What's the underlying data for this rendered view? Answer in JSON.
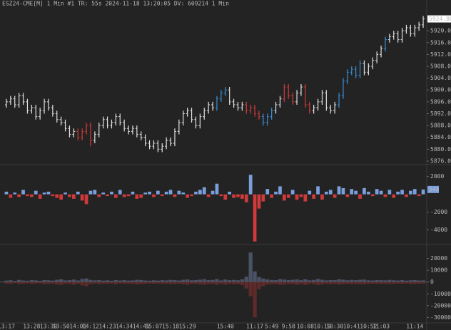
{
  "chart_data": [
    {
      "type": "ohlc",
      "title": "ESZ24-CME[M]  1 Min  #1 TR: 55s 2024-11-18 13:20:05 DV: 609214 1 Min",
      "categories": [
        "13:17",
        null,
        null,
        null,
        null,
        null,
        "13:28",
        null,
        null,
        null,
        "13:39",
        null,
        null,
        "13:50",
        null,
        null,
        null,
        "14:01",
        null,
        null,
        "14:12",
        null,
        null,
        null,
        "14:23",
        null,
        null,
        null,
        "14:34",
        null,
        null,
        null,
        "14:45",
        null,
        null,
        "15:07",
        null,
        null,
        null,
        "15:18",
        null,
        null,
        null,
        "15:29",
        null,
        null,
        null,
        null,
        null,
        null,
        null,
        null,
        "15:40",
        null,
        null,
        null,
        null,
        null,
        null,
        "11:17",
        null,
        null,
        null,
        "5:49",
        null,
        null,
        null,
        "9:58",
        null,
        null,
        null,
        "10:08",
        null,
        null,
        null,
        "10:19",
        null,
        null,
        "10:30",
        null,
        null,
        null,
        "10:41",
        null,
        null,
        null,
        "10:52",
        null,
        null,
        "11:03",
        null,
        null,
        null,
        null,
        null,
        null,
        null,
        "11:14",
        null,
        null
      ],
      "ohlc": [
        [
          5895,
          5897,
          5894,
          5896
        ],
        [
          5896,
          5898,
          5895,
          5897
        ],
        [
          5897,
          5898,
          5894,
          5895
        ],
        [
          5895,
          5899,
          5894,
          5898
        ],
        [
          5898,
          5899,
          5895,
          5896
        ],
        [
          5896,
          5897,
          5892,
          5893
        ],
        [
          5893,
          5895,
          5892,
          5894
        ],
        [
          5894,
          5895,
          5890,
          5891
        ],
        [
          5891,
          5894,
          5890,
          5893
        ],
        [
          5893,
          5897,
          5892,
          5896
        ],
        [
          5896,
          5897,
          5893,
          5894
        ],
        [
          5894,
          5895,
          5891,
          5892
        ],
        [
          5892,
          5893,
          5889,
          5890
        ],
        [
          5890,
          5891,
          5888,
          5889
        ],
        [
          5889,
          5890,
          5886,
          5887
        ],
        [
          5887,
          5888,
          5884,
          5885
        ],
        [
          5885,
          5887,
          5884,
          5886
        ],
        [
          5886,
          5887,
          5883,
          5884
        ],
        [
          5884,
          5887,
          5883,
          5886
        ],
        [
          5886,
          5889,
          5885,
          5888
        ],
        [
          5888,
          5889,
          5881,
          5883
        ],
        [
          5883,
          5886,
          5882,
          5885
        ],
        [
          5885,
          5889,
          5884,
          5888
        ],
        [
          5888,
          5891,
          5887,
          5890
        ],
        [
          5890,
          5891,
          5887,
          5888
        ],
        [
          5888,
          5890,
          5887,
          5889
        ],
        [
          5889,
          5892,
          5888,
          5891
        ],
        [
          5891,
          5892,
          5888,
          5889
        ],
        [
          5889,
          5890,
          5886,
          5887
        ],
        [
          5887,
          5888,
          5885,
          5886
        ],
        [
          5886,
          5888,
          5885,
          5887
        ],
        [
          5887,
          5888,
          5884,
          5885
        ],
        [
          5885,
          5886,
          5883,
          5884
        ],
        [
          5884,
          5885,
          5881,
          5882
        ],
        [
          5882,
          5883,
          5880,
          5881
        ],
        [
          5881,
          5883,
          5880,
          5882
        ],
        [
          5882,
          5883,
          5879,
          5880
        ],
        [
          5880,
          5882,
          5879,
          5881
        ],
        [
          5881,
          5884,
          5880,
          5883
        ],
        [
          5883,
          5884,
          5881,
          5882
        ],
        [
          5882,
          5887,
          5881,
          5886
        ],
        [
          5886,
          5890,
          5885,
          5889
        ],
        [
          5889,
          5893,
          5888,
          5892
        ],
        [
          5892,
          5894,
          5891,
          5893
        ],
        [
          5893,
          5894,
          5889,
          5890
        ],
        [
          5890,
          5891,
          5887,
          5888
        ],
        [
          5888,
          5892,
          5887,
          5891
        ],
        [
          5891,
          5894,
          5890,
          5893
        ],
        [
          5893,
          5896,
          5892,
          5895
        ],
        [
          5895,
          5896,
          5893,
          5894
        ],
        [
          5894,
          5898,
          5893,
          5897
        ],
        [
          5897,
          5900,
          5896,
          5899
        ],
        [
          5899,
          5901,
          5898,
          5900
        ],
        [
          5900,
          5901,
          5895,
          5896
        ],
        [
          5896,
          5897,
          5894,
          5895
        ],
        [
          5895,
          5896,
          5893,
          5894
        ],
        [
          5894,
          5896,
          5893,
          5895
        ],
        [
          5895,
          5896,
          5892,
          5893
        ],
        [
          5893,
          5895,
          5892,
          5894
        ],
        [
          5894,
          5895,
          5891,
          5892
        ],
        [
          5892,
          5893,
          5890,
          5891
        ],
        [
          5891,
          5892,
          5888,
          5889
        ],
        [
          5889,
          5892,
          5888,
          5891
        ],
        [
          5891,
          5894,
          5890,
          5893
        ],
        [
          5893,
          5896,
          5892,
          5895
        ],
        [
          5895,
          5898,
          5894,
          5897
        ],
        [
          5897,
          5902,
          5896,
          5901
        ],
        [
          5901,
          5902,
          5897,
          5898
        ],
        [
          5898,
          5899,
          5895,
          5896
        ],
        [
          5896,
          5900,
          5895,
          5899
        ],
        [
          5899,
          5902,
          5898,
          5901
        ],
        [
          5901,
          5902,
          5894,
          5895
        ],
        [
          5895,
          5896,
          5892,
          5893
        ],
        [
          5893,
          5895,
          5892,
          5894
        ],
        [
          5894,
          5897,
          5893,
          5896
        ],
        [
          5896,
          5900,
          5895,
          5899
        ],
        [
          5899,
          5900,
          5893,
          5894
        ],
        [
          5894,
          5895,
          5892,
          5893
        ],
        [
          5893,
          5896,
          5892,
          5895
        ],
        [
          5895,
          5899,
          5894,
          5898
        ],
        [
          5898,
          5904,
          5897,
          5903
        ],
        [
          5903,
          5907,
          5902,
          5906
        ],
        [
          5906,
          5908,
          5905,
          5907
        ],
        [
          5907,
          5908,
          5904,
          5905
        ],
        [
          5905,
          5910,
          5904,
          5909
        ],
        [
          5909,
          5910,
          5905,
          5906
        ],
        [
          5906,
          5909,
          5905,
          5908
        ],
        [
          5908,
          5911,
          5907,
          5910
        ],
        [
          5910,
          5913,
          5909,
          5912
        ],
        [
          5912,
          5915,
          5911,
          5914
        ],
        [
          5914,
          5918,
          5913,
          5917
        ],
        [
          5917,
          5919,
          5916,
          5918
        ],
        [
          5918,
          5920,
          5917,
          5919
        ],
        [
          5919,
          5920,
          5916,
          5917
        ],
        [
          5917,
          5921,
          5916,
          5920
        ],
        [
          5920,
          5922,
          5919,
          5921
        ],
        [
          5921,
          5922,
          5918,
          5919
        ],
        [
          5919,
          5922,
          5918,
          5921
        ],
        [
          5921,
          5923,
          5920,
          5922
        ],
        [
          5922,
          5925,
          5921,
          5924
        ]
      ],
      "colors": [
        "#e0e0e0",
        "#e0e0e0",
        "#e0e0e0",
        "#e0e0e0",
        "#e0e0e0",
        "#e0e0e0",
        "#e0e0e0",
        "#e0e0e0",
        "#e0e0e0",
        "#e0e0e0",
        "#e0e0e0",
        "#e0e0e0",
        "#e0e0e0",
        "#e0e0e0",
        "#e0e0e0",
        "#e0e0e0",
        "#e0e0e0",
        "#d03a3a",
        "#d03a3a",
        "#d03a3a",
        "#d03a3a",
        "#e0e0e0",
        "#e0e0e0",
        "#e0e0e0",
        "#e0e0e0",
        "#e0e0e0",
        "#e0e0e0",
        "#e0e0e0",
        "#e0e0e0",
        "#e0e0e0",
        "#e0e0e0",
        "#e0e0e0",
        "#e0e0e0",
        "#e0e0e0",
        "#e0e0e0",
        "#e0e0e0",
        "#e0e0e0",
        "#e0e0e0",
        "#e0e0e0",
        "#e0e0e0",
        "#e0e0e0",
        "#e0e0e0",
        "#e0e0e0",
        "#e0e0e0",
        "#e0e0e0",
        "#e0e0e0",
        "#e0e0e0",
        "#e0e0e0",
        "#e0e0e0",
        "#e0e0e0",
        "#3a8fd6",
        "#3a8fd6",
        "#3a8fd6",
        "#e0e0e0",
        "#e0e0e0",
        "#e0e0e0",
        "#e0e0e0",
        "#d03a3a",
        "#d03a3a",
        "#d03a3a",
        "#d03a3a",
        "#3a8fd6",
        "#3a8fd6",
        "#3a8fd6",
        "#e0e0e0",
        "#e0e0e0",
        "#d03a3a",
        "#d03a3a",
        "#d03a3a",
        "#e0e0e0",
        "#e0e0e0",
        "#d03a3a",
        "#d03a3a",
        "#e0e0e0",
        "#e0e0e0",
        "#e0e0e0",
        "#e0e0e0",
        "#e0e0e0",
        "#e0e0e0",
        "#3a8fd6",
        "#3a8fd6",
        "#3a8fd6",
        "#3a8fd6",
        "#3a8fd6",
        "#3a8fd6",
        "#e0e0e0",
        "#e0e0e0",
        "#e0e0e0",
        "#e0e0e0",
        "#e0e0e0",
        "#3a8fd6",
        "#e0e0e0",
        "#e0e0e0",
        "#e0e0e0",
        "#e0e0e0",
        "#e0e0e0",
        "#e0e0e0",
        "#e0e0e0",
        "#e0e0e0",
        "#e0e0e0"
      ],
      "last_label": "5924.00",
      "ylim": [
        5875.5,
        5927.5
      ],
      "yticks": [
        {
          "value": 5876,
          "label": "5876.00"
        },
        {
          "value": 5880,
          "label": "5880.00"
        },
        {
          "value": 5884,
          "label": "5884.00"
        },
        {
          "value": 5888,
          "label": "5888.00"
        },
        {
          "value": 5892,
          "label": "5892.00"
        },
        {
          "value": 5896,
          "label": "5896.00"
        },
        {
          "value": 5900,
          "label": "5900.00"
        },
        {
          "value": 5904,
          "label": "5904.00"
        },
        {
          "value": 5908,
          "label": "5908.00"
        },
        {
          "value": 5912,
          "label": "5912.00"
        },
        {
          "value": 5916,
          "label": "5916.00"
        },
        {
          "value": 5920,
          "label": "5920.00"
        }
      ]
    },
    {
      "type": "bar",
      "up_color": "#7a9fdc",
      "down_color": "#d03a3a",
      "series": [
        {
          "values": [
            300,
            -400,
            200,
            -300,
            500,
            -200,
            -300,
            400,
            -500,
            200,
            300,
            -200,
            -400,
            -600,
            200,
            -300,
            -500,
            300,
            -700,
            -1100,
            400,
            500,
            -300,
            200,
            -200,
            300,
            -400,
            500,
            -300,
            -200,
            300,
            -500,
            -400,
            200,
            300,
            -300,
            400,
            -200,
            300,
            500,
            -300,
            400,
            200,
            -400,
            -200,
            300,
            500,
            800,
            -300,
            400,
            1200,
            -200,
            -600,
            300,
            -400,
            -300,
            -500,
            -900,
            2200,
            -5300,
            -1600,
            -800,
            600,
            -400,
            300,
            900,
            -700,
            -400,
            500,
            -600,
            -300,
            -800,
            400,
            -500,
            900,
            -600,
            300,
            500,
            -400,
            900,
            700,
            -300,
            600,
            400,
            -500,
            700,
            300,
            -200,
            600,
            400,
            -300,
            500,
            -400,
            300,
            500,
            -300,
            400,
            600,
            -200,
            544
          ]
        }
      ],
      "ylim": [
        -5400,
        3100
      ],
      "yticks": [
        2000,
        -2000,
        -4000
      ]
    },
    {
      "type": "mirror",
      "series": [
        {
          "color": "#4b5266",
          "values": [
            1200,
            1500,
            900,
            1800,
            1300,
            1100,
            1600,
            1400,
            1000,
            1700,
            1500,
            1200,
            1900,
            2300,
            1400,
            1600,
            2100,
            1300,
            2600,
            3000,
            1800,
            1400,
            1600,
            1200,
            1500,
            1100,
            1700,
            1300,
            1600,
            1200,
            1400,
            1900,
            1700,
            1300,
            1100,
            1500,
            1200,
            1600,
            1400,
            1800,
            1600,
            1300,
            1900,
            2200,
            1500,
            1700,
            2000,
            2400,
            1600,
            1800,
            2500,
            1400,
            2100,
            1600,
            1800,
            1500,
            2300,
            4500,
            25000,
            9000,
            4200,
            3000,
            2200,
            1800,
            1600,
            2500,
            2100,
            1700,
            1900,
            2200,
            1600,
            2400,
            1500,
            1800,
            2600,
            1900,
            1400,
            1700,
            1600,
            2300,
            2000,
            1500,
            1800,
            1600,
            1900,
            2100,
            1500,
            1300,
            1700,
            1600,
            1400,
            1800,
            1500,
            1300,
            1600,
            1200,
            1500,
            1700,
            1300,
            1400
          ]
        },
        {
          "color": "#5e2a2a",
          "values": [
            -1300,
            -1600,
            -1000,
            -1700,
            -1400,
            -1200,
            -1500,
            -1300,
            -1100,
            -1800,
            -1600,
            -1300,
            -2000,
            -2500,
            -1500,
            -1700,
            -2300,
            -1400,
            -2800,
            -3500,
            -1700,
            -1300,
            -1700,
            -1300,
            -1400,
            -1200,
            -1800,
            -1200,
            -1500,
            -1300,
            -1500,
            -2000,
            -1800,
            -1400,
            -1200,
            -1400,
            -1300,
            -1500,
            -1500,
            -1700,
            -1700,
            -1400,
            -1800,
            -2300,
            -1600,
            -1600,
            -1900,
            -2300,
            -1700,
            -1700,
            -2400,
            -1500,
            -2300,
            -1700,
            -1900,
            -1700,
            -2600,
            -5500,
            -12000,
            -30000,
            -6000,
            -3500,
            -2100,
            -1900,
            -1700,
            -2400,
            -2300,
            -1800,
            -1800,
            -2400,
            -1700,
            -2500,
            -1600,
            -1900,
            -2500,
            -2000,
            -1500,
            -1800,
            -1700,
            -2200,
            -1900,
            -1600,
            -1900,
            -1700,
            -1800,
            -2000,
            -1600,
            -1400,
            -1600,
            -1700,
            -1500,
            -1700,
            -1600,
            -1400,
            -1500,
            -1300,
            -1600,
            -1600,
            -1400,
            -1500
          ]
        }
      ],
      "ylim": [
        -34000,
        30000
      ],
      "yticks": [
        20000,
        10000,
        0,
        -10000,
        -20000,
        -30000
      ]
    }
  ]
}
